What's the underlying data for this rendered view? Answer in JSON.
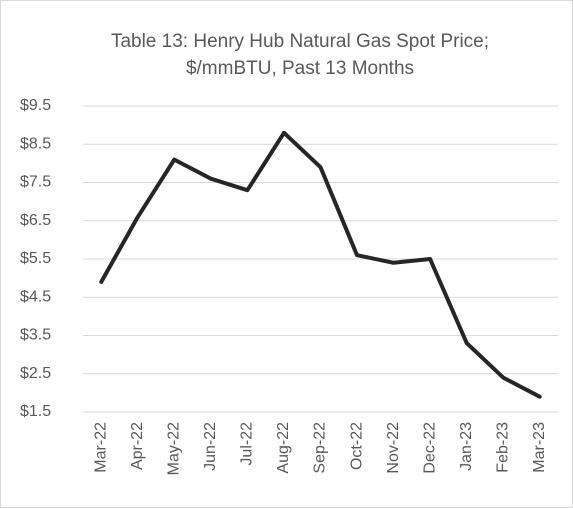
{
  "chart_data": {
    "type": "line",
    "title": [
      "Table 13: Henry Hub Natural Gas Spot Price;",
      "$/mmBTU, Past 13 Months"
    ],
    "categories": [
      "Mar-22",
      "Apr-22",
      "May-22",
      "Jun-22",
      "Jul-22",
      "Aug-22",
      "Sep-22",
      "Oct-22",
      "Nov-22",
      "Dec-22",
      "Jan-23",
      "Feb-23",
      "Mar-23"
    ],
    "series": [
      {
        "color": "#262626",
        "values": [
          4.9,
          6.6,
          8.1,
          7.6,
          7.3,
          8.8,
          7.9,
          5.6,
          5.4,
          5.5,
          3.3,
          2.4,
          1.9
        ]
      }
    ],
    "ylim": [
      1.5,
      9.5
    ],
    "yticks": [
      {
        "value": 1.5,
        "label": "$1.5"
      },
      {
        "value": 2.5,
        "label": "$2.5"
      },
      {
        "value": 3.5,
        "label": "$3.5"
      },
      {
        "value": 4.5,
        "label": "$4.5"
      },
      {
        "value": 5.5,
        "label": "$5.5"
      },
      {
        "value": 6.5,
        "label": "$6.5"
      },
      {
        "value": 7.5,
        "label": "$7.5"
      },
      {
        "value": 8.5,
        "label": "$8.5"
      },
      {
        "value": 9.5,
        "label": "$9.5"
      }
    ],
    "grid": true
  }
}
